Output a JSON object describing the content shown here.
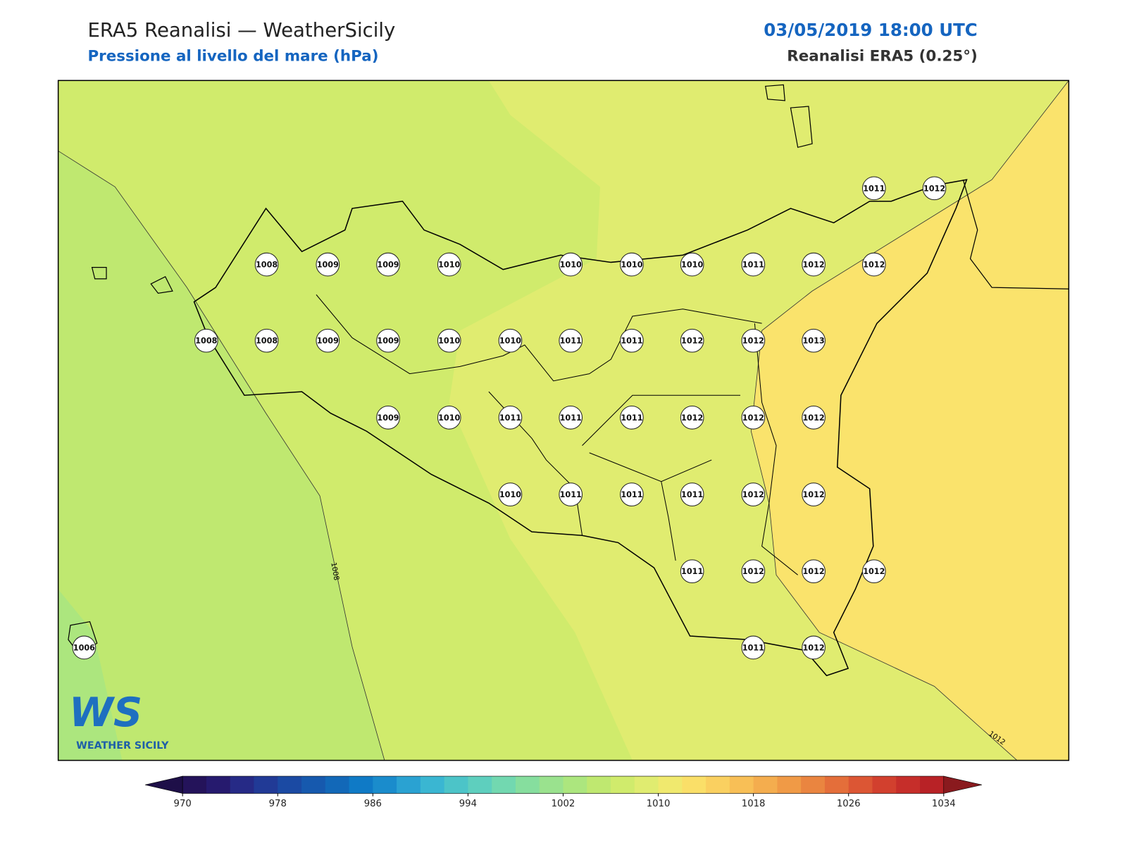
{
  "header": {
    "title": "ERA5 Reanalisi — WeatherSicily",
    "subtitle": "Pressione al livello del mare (hPa)",
    "datetime": "03/05/2019 18:00 UTC",
    "source": "Reanalisi ERA5 (0.25°)"
  },
  "stations": [
    "1011",
    "1012",
    "1008",
    "1009",
    "1009",
    "1010",
    "1010",
    "1010",
    "1010",
    "1011",
    "1012",
    "1012",
    "1008",
    "1008",
    "1009",
    "1009",
    "1010",
    "1010",
    "1011",
    "1011",
    "1012",
    "1012",
    "1013",
    "1009",
    "1010",
    "1011",
    "1011",
    "1011",
    "1012",
    "1012",
    "1012",
    "1010",
    "1011",
    "1011",
    "1011",
    "1012",
    "1012",
    "1011",
    "1012",
    "1012",
    "1012",
    "1006",
    "1011",
    "1012"
  ],
  "contour_labels": [
    "1008",
    "1012"
  ],
  "colorbar": {
    "ticks": [
      970,
      978,
      986,
      994,
      1002,
      1010,
      1018,
      1026,
      1034
    ],
    "colors": [
      "#24135a",
      "#261a6e",
      "#262a86",
      "#213a96",
      "#1b4aa3",
      "#1659ae",
      "#1268b8",
      "#0f7ac6",
      "#1a8ccc",
      "#2aa2d2",
      "#3ab6d2",
      "#4cc4c8",
      "#5ecfbe",
      "#72d8b0",
      "#86de9e",
      "#9ae28e",
      "#ace67e",
      "#bfe870",
      "#d0eb6c",
      "#e0ec70",
      "#f0e96e",
      "#fadf68",
      "#fad060",
      "#f8bf56",
      "#f4ad4e",
      "#f09a46",
      "#ea8540",
      "#e46e3a",
      "#dc5634",
      "#d2402e",
      "#c62e2a",
      "#b82226"
    ]
  },
  "logo": {
    "mark": "WS",
    "name": "WEATHER SICILY"
  }
}
